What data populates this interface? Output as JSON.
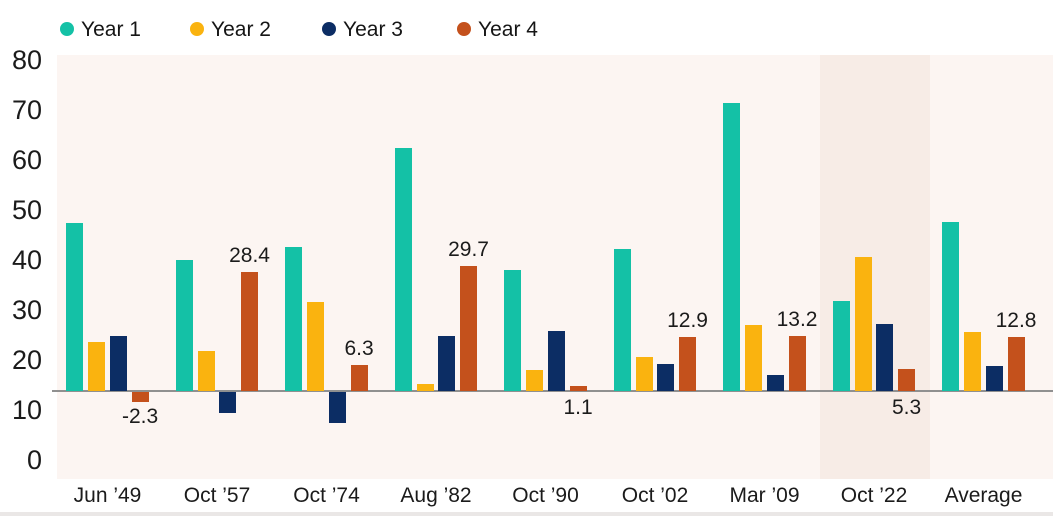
{
  "chart_data": {
    "type": "bar",
    "title": "",
    "categories": [
      "Jun ’49",
      "Oct ’57",
      "Oct ’74",
      "Aug ’82",
      "Oct ’90",
      "Oct ’02",
      "Mar ’09",
      "Oct ’22",
      "Average"
    ],
    "series": [
      {
        "name": "Year 1",
        "color": "#14C1A6",
        "values": [
          40.0,
          31.3,
          34.4,
          57.9,
          28.9,
          33.7,
          68.6,
          21.4,
          40.2
        ]
      },
      {
        "name": "Year 2",
        "color": "#FAB30F",
        "values": [
          11.7,
          9.6,
          21.2,
          1.7,
          5.1,
          8.0,
          15.6,
          31.8,
          14.1
        ]
      },
      {
        "name": "Year 3",
        "color": "#0C2D64",
        "values": [
          13.0,
          -4.9,
          -7.4,
          13.0,
          14.4,
          6.5,
          3.9,
          16.0,
          5.9
        ]
      },
      {
        "name": "Year 4",
        "color": "#C4511C",
        "values": [
          -2.3,
          28.4,
          6.3,
          29.7,
          1.1,
          12.9,
          13.2,
          5.3,
          12.8
        ],
        "data_labels": [
          "-2.3",
          "28.4",
          "6.3",
          "29.7",
          "1.1",
          "12.9",
          "13.2",
          "5.3",
          "12.8"
        ]
      }
    ],
    "y_axis_ticks": [
      "80",
      "70",
      "60",
      "50",
      "40",
      "30",
      "20",
      "10",
      "0"
    ],
    "ylim": [
      0,
      80
    ],
    "grid": false,
    "legend_position": "top",
    "highlighted_category": "Oct ’22",
    "baseline_value": 0
  },
  "colors": {
    "page_background": "#FFFFFF",
    "plot_background": "#FCF5F2",
    "highlight_band": "#F7ECE6",
    "axis_line": "#909090",
    "text": "#1B1B1B"
  }
}
